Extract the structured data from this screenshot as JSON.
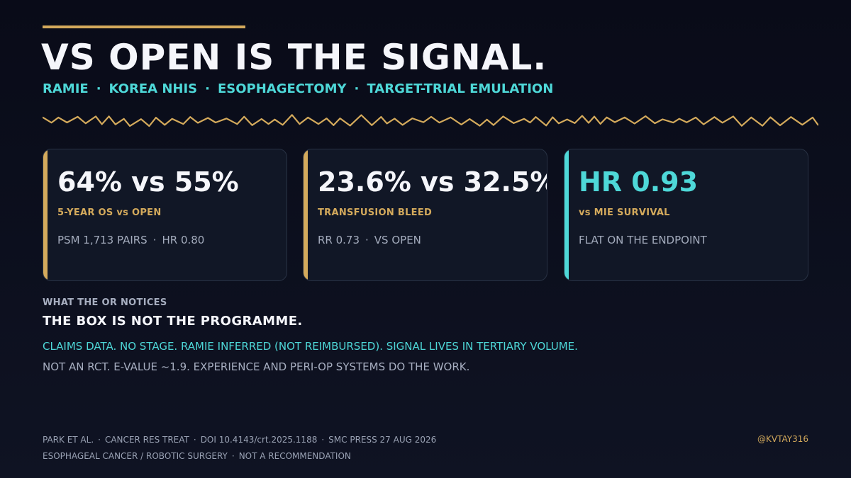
{
  "title": "VS OPEN IS THE SIGNAL.",
  "tags": [
    "RAMIE",
    "KOREA NHIS",
    "ESOPHAGECTOMY",
    "TARGET-TRIAL EMULATION"
  ],
  "tag_separator": "·",
  "colors": {
    "gold": "#d4aa5c",
    "teal": "#4ed8d8",
    "white": "#f5f6fb",
    "muted": "#a7aec0"
  },
  "cards": [
    {
      "big": "64% vs 55%",
      "label": "5-YEAR OS vs OPEN",
      "sub_parts": [
        "PSM 1,713 PAIRS",
        "HR 0.80"
      ],
      "accent": "#d4aa5c",
      "big_color": "#f5f6fb",
      "label_color": "#d4aa5c"
    },
    {
      "big": "23.6% vs 32.5%",
      "label": "TRANSFUSION BLEED",
      "sub_parts": [
        "RR 0.73",
        "VS OPEN"
      ],
      "accent": "#d4aa5c",
      "big_color": "#f5f6fb",
      "label_color": "#d4aa5c"
    },
    {
      "big": "HR 0.93",
      "label": "vs MIE SURVIVAL",
      "sub_parts": [
        "FLAT ON THE ENDPOINT"
      ],
      "accent": "#4ed8d8",
      "big_color": "#4ed8d8",
      "label_color": "#d4aa5c"
    }
  ],
  "section": {
    "kicker": "WHAT THE OR NOTICES",
    "headline": "THE BOX IS NOT THE PROGRAMME.",
    "line1": "CLAIMS DATA. NO STAGE. RAMIE INFERRED (NOT REIMBURSED). SIGNAL LIVES IN TERTIARY VOLUME.",
    "line2": "NOT AN RCT. E-VALUE ~1.9. EXPERIENCE AND PERI-OP SYSTEMS DO THE WORK."
  },
  "footer": {
    "line1_parts": [
      "PARK ET AL.",
      "CANCER RES TREAT",
      "DOI 10.4143/crt.2025.1188",
      "SMC PRESS 27 AUG 2026"
    ],
    "line2_parts": [
      "ESOPHAGEAL CANCER / ROBOTIC SURGERY",
      "NOT A RECOMMENDATION"
    ],
    "handle": "@KVTAY316"
  }
}
